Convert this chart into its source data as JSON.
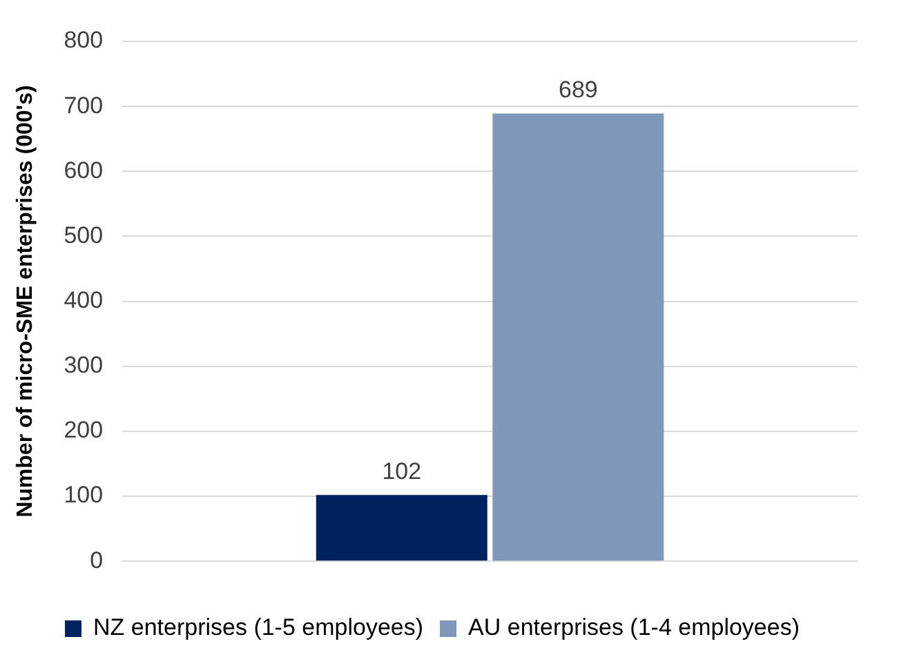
{
  "chart_data": {
    "type": "bar",
    "ylabel": "Number of micro-SME enterprises (000's)",
    "categories": [
      null
    ],
    "series": [
      {
        "name": "NZ enterprises (1-5 employees)",
        "color": "#002060",
        "values": [
          102
        ]
      },
      {
        "name": "AU enterprises (1-4 employees)",
        "color": "#7f97b8",
        "values": [
          689
        ]
      }
    ],
    "ylim": [
      0,
      800
    ],
    "yticks": [
      0,
      100,
      200,
      300,
      400,
      500,
      600,
      700,
      800
    ],
    "grid": "y",
    "legend": "bottom",
    "data_labels": true
  }
}
